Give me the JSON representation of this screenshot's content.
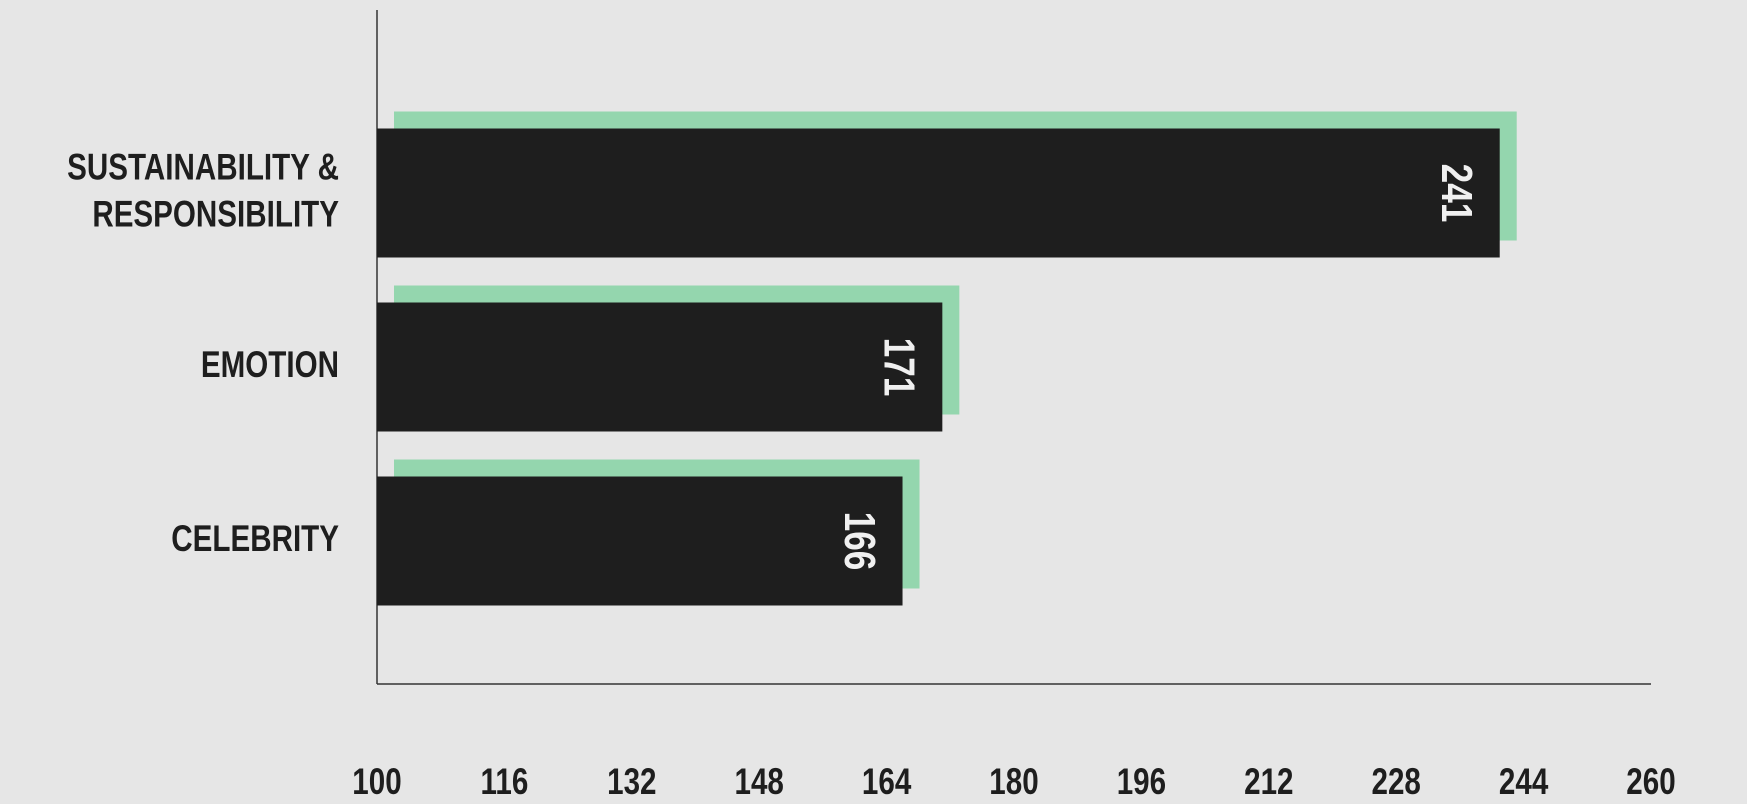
{
  "chart_data": {
    "type": "bar",
    "orientation": "horizontal",
    "categories": [
      "SUSTAINABILITY & RESPONSIBILITY",
      "EMOTION",
      "CELEBRITY"
    ],
    "values": [
      241,
      171,
      166
    ],
    "color": "#1e1e1e",
    "shadow_color": "#94d6ae",
    "xlim": [
      100,
      260
    ],
    "xticks": [
      100,
      116,
      132,
      148,
      164,
      180,
      196,
      212,
      228,
      244,
      260
    ],
    "grid": false
  }
}
